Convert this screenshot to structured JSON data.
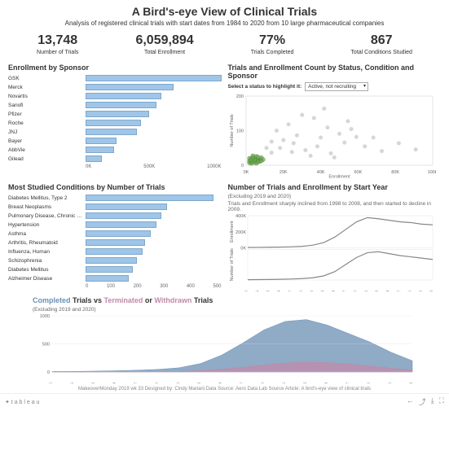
{
  "header": {
    "title": "A Bird's-eye View of Clinical Trials",
    "subtitle": "Analysis of registered clinical trials with start dates from 1984 to 2020 from 10 large pharmaceutical companies"
  },
  "kpi": [
    {
      "value": "13,748",
      "label": "Number of Trials"
    },
    {
      "value": "6,059,894",
      "label": "Total Enrollment"
    },
    {
      "value": "77%",
      "label": "Trials Completed"
    },
    {
      "value": "867",
      "label": "Total Conditions Studied"
    }
  ],
  "sponsor": {
    "title": "Enrollment by Sponsor",
    "bar_color": "#9fc5e8",
    "max": 1000,
    "ticks": [
      "0K",
      "500K",
      "1000K"
    ],
    "items": [
      {
        "label": "GSK",
        "value": 1000
      },
      {
        "label": "Merck",
        "value": 650
      },
      {
        "label": "Novartis",
        "value": 560
      },
      {
        "label": "Sanofi",
        "value": 520
      },
      {
        "label": "Pfizer",
        "value": 470
      },
      {
        "label": "Roche",
        "value": 410
      },
      {
        "label": "JNJ",
        "value": 380
      },
      {
        "label": "Bayer",
        "value": 230
      },
      {
        "label": "AbbVie",
        "value": 210
      },
      {
        "label": "Gilead",
        "value": 120
      }
    ]
  },
  "scatter": {
    "title": "Trials and Enrollment Count by Status, Condition and Sponsor",
    "select_label": "Select a status to highlight it:",
    "select_value": "Active, not recruiting",
    "xlabel": "Enrollment",
    "ylabel": "Number of Trials",
    "xticks": [
      "0K",
      "20K",
      "40K",
      "60K",
      "80K",
      "100K"
    ],
    "yticks": [
      "0",
      "100",
      "200"
    ],
    "highlight_color": "#6aa84f",
    "other_color": "#bbbbbb",
    "xlim": 110,
    "ylim": 220,
    "green": [
      [
        2,
        8
      ],
      [
        3,
        12
      ],
      [
        4,
        18
      ],
      [
        5,
        22
      ],
      [
        6,
        28
      ],
      [
        3,
        6
      ],
      [
        7,
        15
      ],
      [
        4,
        30
      ],
      [
        8,
        20
      ],
      [
        2,
        14
      ],
      [
        5,
        10
      ],
      [
        6,
        16
      ],
      [
        9,
        24
      ],
      [
        3,
        20
      ],
      [
        4,
        8
      ],
      [
        7,
        26
      ],
      [
        5,
        18
      ],
      [
        8,
        12
      ],
      [
        2,
        22
      ],
      [
        6,
        6
      ],
      [
        10,
        18
      ],
      [
        4,
        24
      ],
      [
        3,
        16
      ],
      [
        7,
        10
      ],
      [
        9,
        14
      ]
    ],
    "grey": [
      [
        15,
        40
      ],
      [
        20,
        55
      ],
      [
        28,
        70
      ],
      [
        35,
        48
      ],
      [
        42,
        60
      ],
      [
        50,
        38
      ],
      [
        58,
        72
      ],
      [
        65,
        90
      ],
      [
        18,
        110
      ],
      [
        25,
        130
      ],
      [
        30,
        95
      ],
      [
        40,
        150
      ],
      [
        48,
        120
      ],
      [
        55,
        100
      ],
      [
        60,
        140
      ],
      [
        70,
        60
      ],
      [
        80,
        45
      ],
      [
        90,
        70
      ],
      [
        100,
        50
      ],
      [
        38,
        30
      ],
      [
        22,
        80
      ],
      [
        44,
        88
      ],
      [
        52,
        25
      ],
      [
        12,
        55
      ],
      [
        33,
        160
      ],
      [
        46,
        180
      ],
      [
        15,
        75
      ],
      [
        27,
        42
      ],
      [
        62,
        115
      ],
      [
        75,
        88
      ]
    ]
  },
  "conditions": {
    "title": "Most Studied Conditions by Number of Trials",
    "bar_color": "#9fc5e8",
    "max": 500,
    "ticks": [
      "0",
      "100",
      "200",
      "300",
      "400",
      "500"
    ],
    "items": [
      {
        "label": "Diabetes Mellitus, Type 2",
        "value": 470
      },
      {
        "label": "Breast Neoplasms",
        "value": 300
      },
      {
        "label": "Pulmonary Disease, Chronic Obstructive",
        "value": 280
      },
      {
        "label": "Hypertension",
        "value": 260
      },
      {
        "label": "Asthma",
        "value": 240
      },
      {
        "label": "Arthritis, Rheumatoid",
        "value": 220
      },
      {
        "label": "Influenza, Human",
        "value": 210
      },
      {
        "label": "Schizophrenia",
        "value": 190
      },
      {
        "label": "Diabetes Mellitus",
        "value": 175
      },
      {
        "label": "Alzheimer Disease",
        "value": 160
      }
    ]
  },
  "start_year": {
    "title": "Number of Trials and Enrollment by Start Year",
    "subtitle": "(Excluding 2019 and 2020)",
    "note": "Trials and Enrollment sharply inclined from 1998 to 2008, and then started to decline in 2009.",
    "ylabel_top": "Enrollment",
    "ylabel_bottom": "Number of Trials",
    "line_color": "#888888",
    "yticks_top": [
      "0K",
      "200K",
      "400K"
    ],
    "years": [
      "1984",
      "1986",
      "1988",
      "1990",
      "1992",
      "1994",
      "1996",
      "1998",
      "2000",
      "2002",
      "2004",
      "2006",
      "2008",
      "2010",
      "2012",
      "2014",
      "2016",
      "2018"
    ],
    "enrollment": [
      5,
      6,
      8,
      10,
      14,
      20,
      35,
      70,
      140,
      240,
      340,
      395,
      380,
      360,
      340,
      330,
      310,
      300
    ],
    "trials": [
      10,
      12,
      16,
      22,
      30,
      45,
      70,
      130,
      260,
      480,
      700,
      850,
      880,
      820,
      760,
      720,
      680,
      640
    ]
  },
  "area": {
    "title_parts": {
      "completed": "Completed",
      "mid": " Trials vs ",
      "terminated": "Terminated",
      "or": " or ",
      "withdrawn": "Withdrawn",
      "end": " Trials"
    },
    "completed_color": "#6b8fb3",
    "terminated_color": "#c08aa8",
    "subtitle": "(Excluding 2019 and 2020)",
    "yticks": [
      "0",
      "500",
      "1000"
    ],
    "years": [
      "1984",
      "1986",
      "1988",
      "1990",
      "1992",
      "1994",
      "1996",
      "1998",
      "2000",
      "2002",
      "2004",
      "2006",
      "2008",
      "2010",
      "2012",
      "2014",
      "2016",
      "2018"
    ],
    "completed": [
      10,
      12,
      18,
      26,
      38,
      55,
      90,
      180,
      360,
      620,
      900,
      1080,
      1120,
      1000,
      820,
      640,
      420,
      240
    ],
    "terminated": [
      2,
      2,
      3,
      4,
      5,
      8,
      14,
      30,
      60,
      100,
      150,
      190,
      210,
      200,
      170,
      130,
      80,
      40
    ]
  },
  "footer": "MakeoverMonday 2019 wk 33      Designed by: Cindy Mariani      Data Source: Aero Data Lab      Source Article: A bird's-eye view of clinical trials",
  "bottom": {
    "logo": "✦ t a b l e a u"
  }
}
